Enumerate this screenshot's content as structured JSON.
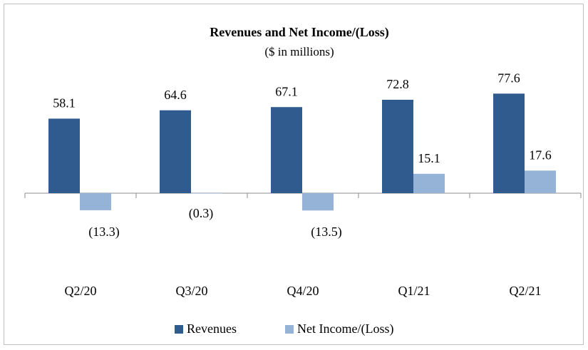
{
  "chart_data": {
    "type": "bar",
    "title": "Revenues and Net Income/(Loss)",
    "subtitle": "($ in millions)",
    "categories": [
      "Q2/20",
      "Q3/20",
      "Q4/20",
      "Q1/21",
      "Q2/21"
    ],
    "series": [
      {
        "name": "Revenues",
        "color": "#2f5b8f",
        "values": [
          58.1,
          64.6,
          67.1,
          72.8,
          77.6
        ]
      },
      {
        "name": "Net Income/(Loss)",
        "color": "#95b3d7",
        "values": [
          -13.3,
          -0.3,
          -13.5,
          15.1,
          17.6
        ],
        "value_labels": [
          "(13.3)",
          "(0.3)",
          "(13.5)",
          "15.1",
          "17.6"
        ]
      }
    ]
  }
}
